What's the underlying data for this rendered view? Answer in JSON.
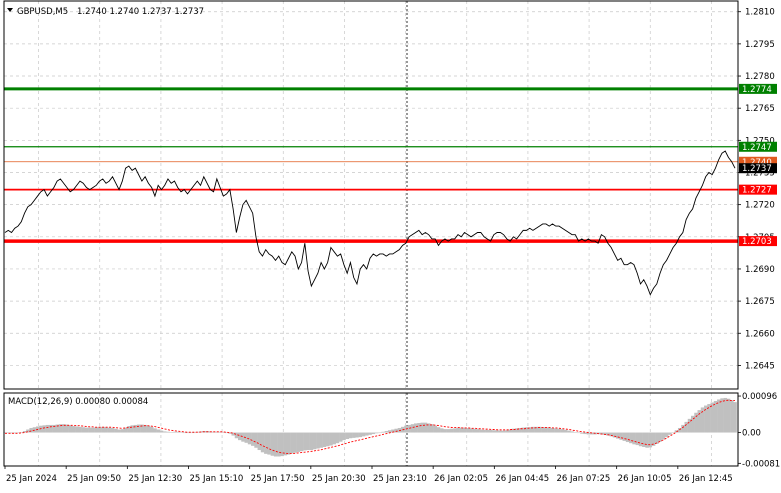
{
  "header": {
    "symbol_label": "GBPUSD,M5",
    "ohlc_label": "1.2740 1.2740 1.2737 1.2737",
    "arrow_color": "#000000"
  },
  "chart_data": [
    {
      "type": "line",
      "series": [
        {
          "color": "#000000",
          "values": [
            1.2707,
            1.2708,
            1.2707,
            1.2709,
            1.271,
            1.2712,
            1.2716,
            1.2719,
            1.272,
            1.2722,
            1.2724,
            1.2726,
            1.2727,
            1.2724,
            1.2726,
            1.2728,
            1.2731,
            1.2732,
            1.273,
            1.2728,
            1.2726,
            1.2727,
            1.2729,
            1.2731,
            1.273,
            1.2728,
            1.2727,
            1.2728,
            1.2729,
            1.2731,
            1.2732,
            1.273,
            1.2731,
            1.2733,
            1.273,
            1.2727,
            1.2731,
            1.2737,
            1.2738,
            1.2736,
            1.2737,
            1.2734,
            1.2731,
            1.2733,
            1.273,
            1.2728,
            1.2724,
            1.2729,
            1.2727,
            1.2729,
            1.2732,
            1.273,
            1.2731,
            1.2728,
            1.2726,
            1.2727,
            1.2725,
            1.2727,
            1.2729,
            1.2731,
            1.2729,
            1.2733,
            1.273,
            1.2727,
            1.2726,
            1.2732,
            1.2728,
            1.2724,
            1.2725,
            1.2727,
            1.2718,
            1.2707,
            1.2714,
            1.272,
            1.2722,
            1.2719,
            1.2716,
            1.2705,
            1.2698,
            1.2696,
            1.2699,
            1.2697,
            1.2696,
            1.2694,
            1.2696,
            1.2693,
            1.2692,
            1.2695,
            1.2698,
            1.2696,
            1.269,
            1.2693,
            1.2702,
            1.2689,
            1.2682,
            1.2685,
            1.2688,
            1.2693,
            1.269,
            1.2693,
            1.27,
            1.2698,
            1.2696,
            1.2697,
            1.2692,
            1.2688,
            1.2693,
            1.2686,
            1.2683,
            1.269,
            1.2692,
            1.269,
            1.2695,
            1.2697,
            1.2696,
            1.2697,
            1.2697,
            1.2696,
            1.2697,
            1.2697,
            1.2698,
            1.2699,
            1.2701,
            1.2702,
            1.2705,
            1.2706,
            1.2707,
            1.2708,
            1.2706,
            1.2707,
            1.2706,
            1.2704,
            1.2704,
            1.2701,
            1.2703,
            1.2704,
            1.2703,
            1.2704,
            1.2704,
            1.2706,
            1.2705,
            1.2707,
            1.2706,
            1.2705,
            1.2706,
            1.2707,
            1.2707,
            1.2705,
            1.2704,
            1.2703,
            1.2706,
            1.2707,
            1.2707,
            1.2706,
            1.2704,
            1.2703,
            1.2705,
            1.2704,
            1.2706,
            1.2708,
            1.2708,
            1.2709,
            1.2708,
            1.2709,
            1.271,
            1.2711,
            1.2711,
            1.271,
            1.2711,
            1.271,
            1.271,
            1.2709,
            1.2708,
            1.2707,
            1.2706,
            1.2706,
            1.2703,
            1.2704,
            1.2703,
            1.2704,
            1.2703,
            1.2703,
            1.2702,
            1.2706,
            1.2705,
            1.2702,
            1.27,
            1.2697,
            1.2694,
            1.2695,
            1.2692,
            1.2692,
            1.2693,
            1.2692,
            1.2688,
            1.2683,
            1.2685,
            1.2682,
            1.2678,
            1.2681,
            1.2683,
            1.2688,
            1.2692,
            1.2694,
            1.2697,
            1.27,
            1.2702,
            1.2705,
            1.2707,
            1.2713,
            1.2716,
            1.2718,
            1.2723,
            1.2726,
            1.2729,
            1.2733,
            1.2735,
            1.2734,
            1.2737,
            1.2741,
            1.2744,
            1.2745,
            1.2742,
            1.274,
            1.2737
          ]
        }
      ],
      "ylim": [
        1.2634,
        1.2815
      ],
      "y_ticks": [
        {
          "value": 1.281,
          "label": "1.2810"
        },
        {
          "value": 1.2795,
          "label": "1.2795"
        },
        {
          "value": 1.278,
          "label": "1.2780"
        },
        {
          "value": 1.2765,
          "label": "1.2765"
        },
        {
          "value": 1.275,
          "label": "1.2750"
        },
        {
          "value": 1.2735,
          "label": "1.2735"
        },
        {
          "value": 1.272,
          "label": "1.2720"
        },
        {
          "value": 1.2705,
          "label": "1.2705"
        },
        {
          "value": 1.269,
          "label": "1.2690"
        },
        {
          "value": 1.2675,
          "label": "1.2675"
        },
        {
          "value": 1.266,
          "label": "1.2660"
        },
        {
          "value": 1.2645,
          "label": "1.2645"
        }
      ],
      "levels": [
        {
          "value": 1.2774,
          "label": "1.2774",
          "color": "#008000",
          "width": 3
        },
        {
          "value": 1.2747,
          "label": "1.2747",
          "color": "#008000",
          "width": 1.3
        },
        {
          "value": 1.274,
          "label": "1.2740",
          "color": "#e05a1e",
          "width": 0.8
        },
        {
          "value": 1.2727,
          "label": "1.2727",
          "color": "#ff0000",
          "width": 1.8
        },
        {
          "value": 1.2703,
          "label": "1.2703",
          "color": "#ff0000",
          "width": 3.5
        }
      ],
      "current_price": {
        "value": 1.2737,
        "label": "1.2737"
      },
      "grid": true
    },
    {
      "type": "bar",
      "title": "MACD(12,26,9) 0.00080 0.00084",
      "histogram": [
        0.0,
        -1e-05,
        -2e-05,
        -2e-05,
        -1e-05,
        1e-05,
        4e-05,
        8e-05,
        0.00012,
        0.00014,
        0.00016,
        0.00018,
        0.00019,
        0.0002,
        0.0002,
        0.0002,
        0.00021,
        0.00022,
        0.00022,
        0.00021,
        0.00019,
        0.00017,
        0.00016,
        0.00015,
        0.00014,
        0.00013,
        0.00013,
        0.00013,
        0.00014,
        0.00014,
        0.00015,
        0.00014,
        0.00013,
        0.00012,
        0.0001,
        8e-05,
        9e-05,
        0.00013,
        0.00017,
        0.00019,
        0.0002,
        0.00021,
        0.00021,
        0.0002,
        0.00018,
        0.00015,
        0.00011,
        8e-05,
        5e-05,
        3e-05,
        2e-05,
        1e-05,
        2e-05,
        2e-05,
        1e-05,
        0.0,
        -1e-05,
        -1e-05,
        0.0,
        2e-05,
        3e-05,
        4e-05,
        4e-05,
        3e-05,
        2e-05,
        2e-05,
        2e-05,
        1e-05,
        -1e-05,
        -3e-05,
        -8e-05,
        -0.00015,
        -0.0002,
        -0.00024,
        -0.00027,
        -0.00031,
        -0.00035,
        -0.0004,
        -0.00046,
        -0.00052,
        -0.00056,
        -0.00058,
        -0.00061,
        -0.00063,
        -0.00063,
        -0.00062,
        -0.0006,
        -0.00058,
        -0.00055,
        -0.00053,
        -0.00051,
        -0.00049,
        -0.00047,
        -0.00046,
        -0.00046,
        -0.00044,
        -0.00042,
        -0.0004,
        -0.00038,
        -0.00036,
        -0.00034,
        -0.00031,
        -0.00028,
        -0.00024,
        -0.0002,
        -0.00017,
        -0.00015,
        -0.00014,
        -0.00013,
        -0.00012,
        -0.0001,
        -8e-05,
        -6e-05,
        -4e-05,
        -2e-05,
        0.0,
        2e-05,
        4e-05,
        6e-05,
        8e-05,
        0.0001,
        0.00012,
        0.00015,
        0.00018,
        0.0002,
        0.00022,
        0.00024,
        0.00025,
        0.00026,
        0.00026,
        0.00024,
        0.00022,
        0.00018,
        0.00014,
        0.00011,
        9e-05,
        9e-05,
        0.0001,
        0.00011,
        0.00012,
        0.00013,
        0.00013,
        0.00012,
        0.00011,
        0.0001,
        9e-05,
        8e-05,
        7e-05,
        7e-05,
        7e-05,
        6e-05,
        6e-05,
        5e-05,
        5e-05,
        6e-05,
        8e-05,
        0.0001,
        0.00011,
        0.00012,
        0.00013,
        0.00014,
        0.00014,
        0.00015,
        0.00015,
        0.00015,
        0.00014,
        0.00014,
        0.00013,
        0.00012,
        0.00011,
        0.0001,
        9e-05,
        7e-05,
        5e-05,
        3e-05,
        1e-05,
        -1e-05,
        -3e-05,
        -4e-05,
        -5e-05,
        -5e-05,
        -5e-05,
        -4e-05,
        -5e-05,
        -6e-05,
        -8e-05,
        -0.0001,
        -0.00013,
        -0.00016,
        -0.00019,
        -0.00022,
        -0.00025,
        -0.00028,
        -0.00031,
        -0.00033,
        -0.00036,
        -0.00038,
        -0.0004,
        -0.00039,
        -0.00035,
        -0.0003,
        -0.00024,
        -0.00018,
        -0.00012,
        -6e-05,
        0.0,
        6e-05,
        0.00012,
        0.0002,
        0.00028,
        0.00036,
        0.00044,
        0.00052,
        0.00059,
        0.00066,
        0.00071,
        0.00075,
        0.00079,
        0.00083,
        0.00087,
        0.0009,
        0.00091,
        0.00089,
        0.00085,
        0.0008
      ],
      "signal": [
        -2e-05,
        -2e-05,
        -2e-05,
        -2e-05,
        -2e-05,
        -1e-05,
        0.0,
        2e-05,
        4e-05,
        6e-05,
        8e-05,
        0.0001,
        0.00012,
        0.00013,
        0.00015,
        0.00016,
        0.00017,
        0.00018,
        0.00019,
        0.00019,
        0.00019,
        0.00019,
        0.00018,
        0.00018,
        0.00017,
        0.00016,
        0.00015,
        0.00015,
        0.00014,
        0.00014,
        0.00014,
        0.00014,
        0.00014,
        0.00014,
        0.00013,
        0.00012,
        0.00011,
        0.00012,
        0.00013,
        0.00014,
        0.00015,
        0.00016,
        0.00017,
        0.00018,
        0.00018,
        0.00017,
        0.00016,
        0.00014,
        0.00012,
        0.0001,
        8e-05,
        6e-05,
        5e-05,
        4e-05,
        3e-05,
        2e-05,
        1e-05,
        1e-05,
        1e-05,
        1e-05,
        1e-05,
        2e-05,
        2e-05,
        2e-05,
        2e-05,
        2e-05,
        2e-05,
        2e-05,
        1e-05,
        0.0,
        -1e-05,
        -4e-05,
        -7e-05,
        -0.0001,
        -0.00013,
        -0.00016,
        -0.0002,
        -0.00024,
        -0.00028,
        -0.00033,
        -0.00037,
        -0.00041,
        -0.00045,
        -0.00048,
        -0.00051,
        -0.00053,
        -0.00054,
        -0.00055,
        -0.00055,
        -0.00055,
        -0.00054,
        -0.00053,
        -0.00052,
        -0.00051,
        -0.0005,
        -0.00049,
        -0.00047,
        -0.00046,
        -0.00044,
        -0.00042,
        -0.0004,
        -0.00038,
        -0.00036,
        -0.00034,
        -0.00031,
        -0.00029,
        -0.00026,
        -0.00024,
        -0.00022,
        -0.0002,
        -0.00018,
        -0.00016,
        -0.00014,
        -0.00012,
        -0.0001,
        -8e-05,
        -6e-05,
        -4e-05,
        -2e-05,
        0.0,
        2e-05,
        4e-05,
        6e-05,
        8e-05,
        0.0001,
        0.00012,
        0.00014,
        0.00016,
        0.00018,
        0.00019,
        0.0002,
        0.0002,
        0.0002,
        0.00019,
        0.00018,
        0.00016,
        0.00015,
        0.00014,
        0.00013,
        0.00013,
        0.00013,
        0.00012,
        0.00012,
        0.00012,
        0.00011,
        0.00011,
        0.0001,
        0.0001,
        9e-05,
        9e-05,
        8e-05,
        8e-05,
        7e-05,
        7e-05,
        7e-05,
        7e-05,
        8e-05,
        8e-05,
        9e-05,
        0.0001,
        0.0001,
        0.00011,
        0.00012,
        0.00012,
        0.00013,
        0.00013,
        0.00013,
        0.00013,
        0.00013,
        0.00012,
        0.00012,
        0.00011,
        0.0001,
        9e-05,
        8e-05,
        6e-05,
        5e-05,
        3e-05,
        2e-05,
        1e-05,
        0.0,
        -1e-05,
        -2e-05,
        -3e-05,
        -4e-05,
        -5e-05,
        -6e-05,
        -8e-05,
        -0.0001,
        -0.00012,
        -0.00014,
        -0.00016,
        -0.00018,
        -0.00021,
        -0.00023,
        -0.00026,
        -0.00028,
        -0.0003,
        -0.00032,
        -0.00032,
        -0.0003,
        -0.00027,
        -0.00023,
        -0.00019,
        -0.00014,
        -9e-05,
        -4e-05,
        2e-05,
        8e-05,
        0.00014,
        0.00021,
        0.00028,
        0.00035,
        0.00042,
        0.00049,
        0.00055,
        0.00061,
        0.00066,
        0.00071,
        0.00075,
        0.00079,
        0.00082,
        0.00084,
        0.00085,
        0.00084,
        0.00084
      ],
      "ylim": [
        -0.00088,
        0.00104
      ],
      "y_ticks": [
        {
          "value": 0.00096,
          "label": "0.00096"
        },
        {
          "value": 0.0,
          "label": "0.00"
        },
        {
          "value": -0.00081,
          "label": "-0.00081"
        }
      ],
      "hist_color": "#c0c0c0",
      "signal_color": "#ff0000"
    }
  ],
  "x_axis": {
    "categories": [
      "25 Jan 2024",
      "25 Jan 09:50",
      "25 Jan 12:30",
      "25 Jan 15:10",
      "25 Jan 17:50",
      "25 Jan 20:30",
      "25 Jan 23:10",
      "26 Jan 02:05",
      "26 Jan 04:45",
      "26 Jan 07:25",
      "26 Jan 10:05",
      "26 Jan 12:45"
    ]
  }
}
